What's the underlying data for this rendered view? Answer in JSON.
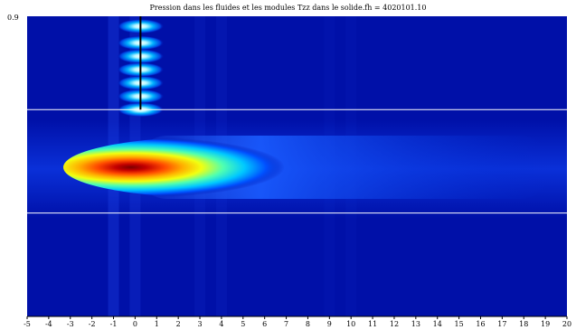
{
  "chart_data": {
    "type": "heatmap",
    "title": "Pression dans les fluides et les modules Tzz dans le solide.fh = 4020101.10",
    "xlabel": "",
    "ylabel": "",
    "xlim": [
      -5,
      20
    ],
    "ylim": [
      0,
      0.9
    ],
    "x_ticks": [
      -5,
      -4,
      -3,
      -2,
      -1,
      0,
      1,
      2,
      3,
      4,
      5,
      6,
      7,
      8,
      9,
      10,
      11,
      12,
      13,
      14,
      15,
      16,
      17,
      18,
      19,
      20
    ],
    "y_tick_labels": [
      "0.9"
    ],
    "colormap": "jet",
    "background_color": "#0010a8",
    "interface_lines_y": [
      0.62,
      0.31
    ],
    "source_line": {
      "x": 0.25,
      "y_from": 0.62,
      "y_to": 0.9
    },
    "fluid_oscillation_y": [
      0.87,
      0.82,
      0.78,
      0.74,
      0.7,
      0.66,
      0.62
    ],
    "solid_field_peak": {
      "x": 1.5,
      "y": 0.465,
      "value": 1.0
    }
  }
}
